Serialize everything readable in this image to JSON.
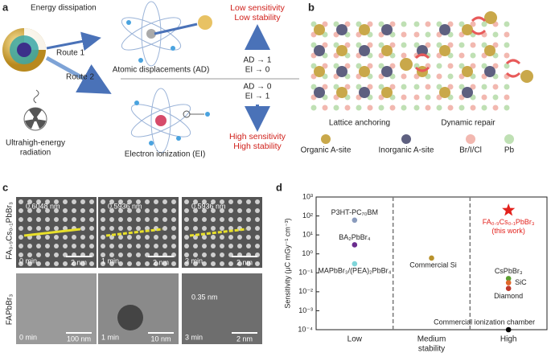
{
  "panel_labels": [
    "a",
    "b",
    "c",
    "d"
  ],
  "panel_a": {
    "title": "Energy dissipation",
    "route_1": "Route 1",
    "route_2": "Route 2",
    "ad_label": "Atomic displacements (AD)",
    "ei_label": "Electron ionization (EI)",
    "radiation_label": [
      "Ultrahigh-energy",
      "radiation"
    ],
    "top_outcome": [
      "Low sensitivity",
      "Low stability"
    ],
    "top_ratio": [
      "AD → 1",
      "EI → 0"
    ],
    "bottom_ratio": [
      "AD → 0",
      "EI → 1"
    ],
    "bottom_outcome": [
      "High sensitivity",
      "High stability"
    ]
  },
  "panel_b": {
    "captions": [
      "Lattice anchoring",
      "Dynamic repair"
    ],
    "legend": [
      {
        "name": "Organic A-site",
        "color": "#c9a84a"
      },
      {
        "name": "Inorganic A-site",
        "color": "#5e6080"
      },
      {
        "name": "Br/I/Cl",
        "color": "#f2b8b0"
      },
      {
        "name": "Pb",
        "color": "#bfe0b4"
      }
    ]
  },
  "panel_c": {
    "row_labels": [
      "FA₀.₉Cs₀.₁PbBr₃",
      "FAPbBr₃"
    ],
    "rows": [
      [
        {
          "time": "0 min",
          "scale": "2 nm",
          "spacing": "0.6048 nm"
        },
        {
          "time": "1 min",
          "scale": "2 nm",
          "spacing": "0.5936 nm"
        },
        {
          "time": "3 min",
          "scale": "2 nm",
          "spacing": "0.5936 nm"
        }
      ],
      [
        {
          "time": "0 min",
          "scale": "100 nm"
        },
        {
          "time": "1 min",
          "scale": "10 nm"
        },
        {
          "time": "3 min",
          "scale": "2 nm",
          "spacing": "0.35 nm"
        }
      ]
    ]
  },
  "chart_data": {
    "type": "scatter",
    "y_label": "Sensitivity (μC mGy⁻¹ cm⁻³)",
    "x_label": "stability",
    "categories": [
      "Low",
      "Medium",
      "High"
    ],
    "log_y": true,
    "ylim": [
      0.0001,
      1000
    ],
    "yticks": [
      {
        "value": 0.0001,
        "label": "10⁻⁴"
      },
      {
        "value": 0.001,
        "label": "10⁻³"
      },
      {
        "value": 0.01,
        "label": "10⁻²"
      },
      {
        "value": 0.1,
        "label": "10⁻¹"
      },
      {
        "value": 1,
        "label": "10⁰"
      },
      {
        "value": 10,
        "label": "10¹"
      },
      {
        "value": 100,
        "label": "10²"
      },
      {
        "value": 1000,
        "label": "10³"
      }
    ],
    "series": [
      {
        "name": "P3HT-PC₇₀BM",
        "category": "Low",
        "value": 60,
        "color": "#8a9bbd"
      },
      {
        "name": "BA₂PbBr₄",
        "category": "Low",
        "value": 3,
        "color": "#6a2c8e"
      },
      {
        "name": "MAPbBr₃/(PEA)₂PbBr₄",
        "category": "Low",
        "value": 0.3,
        "color": "#7fd5d9"
      },
      {
        "name": "Commercial Si",
        "category": "Medium",
        "value": 0.6,
        "color": "#b8922c"
      },
      {
        "name": "FA₀.₉Cs₀.₁PbBr₃",
        "category": "High",
        "value": 200,
        "color": "#e3211c",
        "marker": "star",
        "note": "(this work)"
      },
      {
        "name": "CsPbBr₃",
        "category": "High",
        "value": 0.05,
        "color": "#5a9e2e"
      },
      {
        "name": "SiC",
        "category": "High",
        "value": 0.03,
        "color": "#e0672a"
      },
      {
        "name": "Diamond",
        "category": "High",
        "value": 0.015,
        "color": "#c0392b"
      },
      {
        "name": "Commercial ionization chamber",
        "category": "High",
        "value": 0.0001,
        "color": "#000000"
      }
    ]
  }
}
